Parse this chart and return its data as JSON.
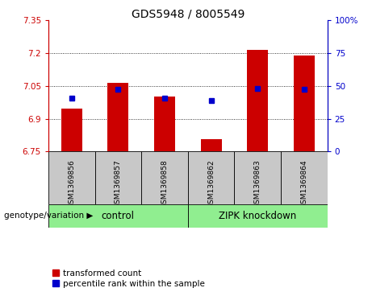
{
  "title": "GDS5948 / 8005549",
  "samples": [
    "GSM1369856",
    "GSM1369857",
    "GSM1369858",
    "GSM1369862",
    "GSM1369863",
    "GSM1369864"
  ],
  "bar_values": [
    6.945,
    7.065,
    7.0,
    6.805,
    7.215,
    7.19
  ],
  "percentile_values": [
    6.995,
    7.035,
    6.995,
    6.985,
    7.04,
    7.035
  ],
  "bar_bottom": 6.75,
  "ylim_left": [
    6.75,
    7.35
  ],
  "ylim_right": [
    0,
    100
  ],
  "yticks_left": [
    6.75,
    6.9,
    7.05,
    7.2,
    7.35
  ],
  "yticks_right": [
    0,
    25,
    50,
    75,
    100
  ],
  "yticklabels_left": [
    "6.75",
    "6.9",
    "7.05",
    "7.2",
    "7.35"
  ],
  "yticklabels_right": [
    "0",
    "25",
    "50",
    "75",
    "100%"
  ],
  "bar_color": "#cc0000",
  "dot_color": "#0000cc",
  "bar_width": 0.45,
  "grid_yticks": [
    6.9,
    7.05,
    7.2
  ],
  "groups": [
    {
      "label": "control",
      "indices": [
        0,
        1,
        2
      ],
      "color": "#90ee90"
    },
    {
      "label": "ZIPK knockdown",
      "indices": [
        3,
        4,
        5
      ],
      "color": "#90ee90"
    }
  ],
  "group_label_prefix": "genotype/variation",
  "legend_bar_label": "transformed count",
  "legend_dot_label": "percentile rank within the sample",
  "tick_label_bg_color": "#c8c8c8",
  "left_axis_color": "#cc0000",
  "right_axis_color": "#0000cc",
  "title_fontsize": 10,
  "tick_fontsize": 7.5,
  "sample_fontsize": 6.5,
  "legend_fontsize": 7.5
}
